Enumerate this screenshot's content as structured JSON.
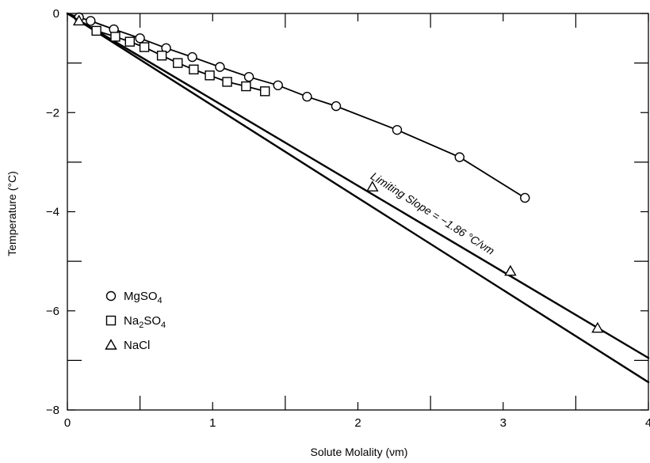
{
  "chart_data": {
    "type": "scatter",
    "title": "",
    "xlabel": "Solute Molality (νm)",
    "ylabel": "Temperature (°C)",
    "xlim": [
      0,
      4
    ],
    "ylim": [
      -8,
      0
    ],
    "xticks": [
      0,
      1,
      2,
      3,
      4
    ],
    "yticks": [
      0,
      -2,
      -4,
      -6,
      -8
    ],
    "x_tick_labels": [
      "0",
      "1",
      "2",
      "3",
      "4"
    ],
    "y_tick_labels": [
      "0",
      "−2",
      "−4",
      "−6",
      "−8"
    ],
    "grid": false,
    "legend_position": "bottom-left",
    "series": [
      {
        "name": "MgSO",
        "subscript": "4",
        "marker": "circle",
        "x": [
          0.08,
          0.16,
          0.32,
          0.5,
          0.68,
          0.86,
          1.05,
          1.25,
          1.45,
          1.65,
          1.85,
          2.27,
          2.7,
          3.15
        ],
        "y": [
          -0.08,
          -0.15,
          -0.32,
          -0.5,
          -0.7,
          -0.88,
          -1.08,
          -1.28,
          -1.45,
          -1.68,
          -1.87,
          -2.35,
          -2.9,
          -3.72
        ]
      },
      {
        "name": "Na",
        "subscript_mid": "2",
        "name_tail": "SO",
        "subscript": "4",
        "marker": "square",
        "x": [
          0.2,
          0.33,
          0.43,
          0.53,
          0.65,
          0.76,
          0.87,
          0.98,
          1.1,
          1.23,
          1.36
        ],
        "y": [
          -0.35,
          -0.47,
          -0.57,
          -0.68,
          -0.85,
          -1.0,
          -1.13,
          -1.25,
          -1.38,
          -1.47,
          -1.57
        ]
      },
      {
        "name": "NaCl",
        "marker": "triangle",
        "x": [
          0.08,
          2.1,
          3.05,
          3.65
        ],
        "y": [
          -0.15,
          -3.5,
          -5.2,
          -6.35
        ]
      }
    ],
    "lines": [
      {
        "label": "NaCl curve",
        "x": [
          0,
          4.0
        ],
        "y": [
          0,
          -6.95
        ]
      },
      {
        "label": "Limiting Slope",
        "x": [
          0,
          4.0
        ],
        "y": [
          0,
          -7.44
        ]
      }
    ],
    "annotation": {
      "text": "Limiting Slope = −1.86 °C/νm",
      "x": 2.5,
      "y": -4.1
    }
  }
}
